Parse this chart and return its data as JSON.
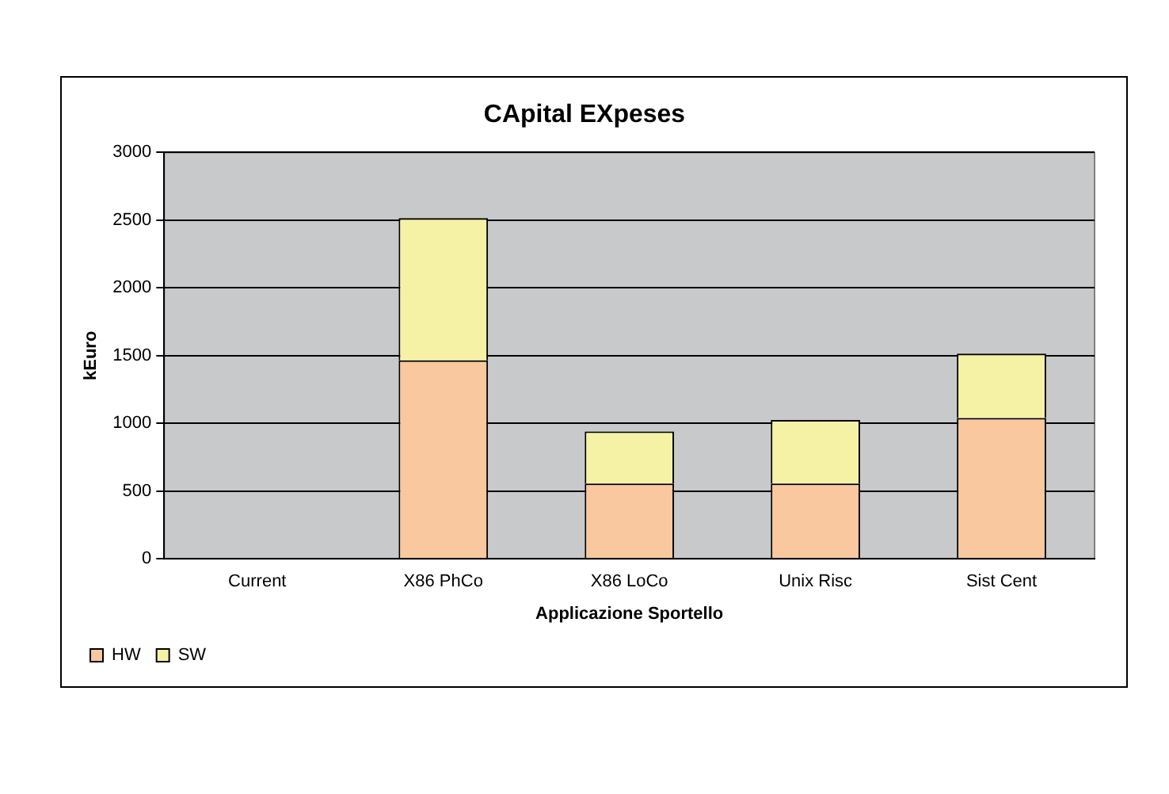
{
  "chart_data": {
    "type": "bar",
    "title": "CApital EXpeses",
    "xlabel": "Applicazione Sportello",
    "ylabel": "kEuro",
    "categories": [
      "Current",
      "X86 PhCo",
      "X86 LoCo",
      "Unix Risc",
      "Sist Cent"
    ],
    "series": [
      {
        "name": "HW",
        "color": "#fac89e",
        "values": [
          0,
          1465,
          555,
          555,
          1040
        ]
      },
      {
        "name": "SW",
        "color": "#f5f2a5",
        "values": [
          0,
          1050,
          385,
          470,
          475
        ]
      }
    ],
    "stacked": true,
    "ylim": [
      0,
      3000
    ],
    "yticks": [
      0,
      500,
      1000,
      1500,
      2000,
      2500,
      3000
    ],
    "grid": "y",
    "legend": "bottom left"
  }
}
